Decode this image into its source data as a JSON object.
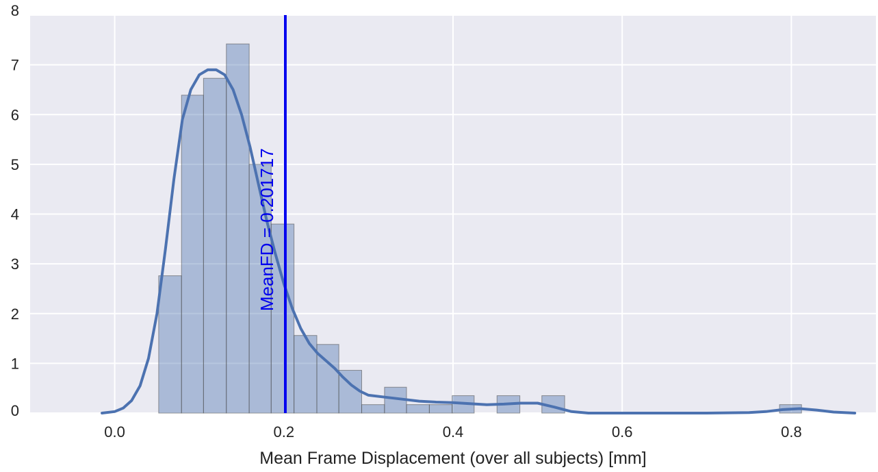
{
  "chart_data": {
    "type": "bar",
    "title": "",
    "xlabel": "Mean Frame Displacement (over all subjects) [mm]",
    "ylabel": "",
    "xlim": [
      -0.1,
      0.9
    ],
    "ylim": [
      0,
      8
    ],
    "grid": true,
    "xticks": [
      0.0,
      0.2,
      0.4,
      0.6,
      0.8
    ],
    "xtick_labels": [
      "0.0",
      "0.2",
      "0.4",
      "0.6",
      "0.8"
    ],
    "yticks": [
      0,
      1,
      2,
      3,
      4,
      5,
      6,
      7,
      8
    ],
    "ytick_labels": [
      "0",
      "1",
      "2",
      "3",
      "4",
      "5",
      "6",
      "7",
      "8"
    ],
    "histogram": {
      "bin_width": 0.0267,
      "bins": [
        {
          "x0": 0.052,
          "x1": 0.079,
          "value": 2.76
        },
        {
          "x0": 0.079,
          "x1": 0.105,
          "value": 6.39
        },
        {
          "x0": 0.105,
          "x1": 0.132,
          "value": 6.73
        },
        {
          "x0": 0.132,
          "x1": 0.159,
          "value": 7.42
        },
        {
          "x0": 0.159,
          "x1": 0.185,
          "value": 5.0
        },
        {
          "x0": 0.185,
          "x1": 0.212,
          "value": 3.8
        },
        {
          "x0": 0.212,
          "x1": 0.239,
          "value": 1.56
        },
        {
          "x0": 0.239,
          "x1": 0.265,
          "value": 1.38
        },
        {
          "x0": 0.265,
          "x1": 0.292,
          "value": 0.86
        },
        {
          "x0": 0.292,
          "x1": 0.319,
          "value": 0.17
        },
        {
          "x0": 0.319,
          "x1": 0.345,
          "value": 0.52
        },
        {
          "x0": 0.345,
          "x1": 0.372,
          "value": 0.17
        },
        {
          "x0": 0.372,
          "x1": 0.399,
          "value": 0.17
        },
        {
          "x0": 0.399,
          "x1": 0.425,
          "value": 0.35
        },
        {
          "x0": 0.425,
          "x1": 0.452,
          "value": 0.0
        },
        {
          "x0": 0.452,
          "x1": 0.479,
          "value": 0.35
        },
        {
          "x0": 0.479,
          "x1": 0.505,
          "value": 0.0
        },
        {
          "x0": 0.505,
          "x1": 0.532,
          "value": 0.35
        },
        {
          "x0": 0.786,
          "x1": 0.812,
          "value": 0.17
        }
      ]
    },
    "kde": {
      "x": [
        -0.015,
        0.0,
        0.01,
        0.02,
        0.03,
        0.04,
        0.05,
        0.06,
        0.07,
        0.08,
        0.09,
        0.1,
        0.11,
        0.12,
        0.13,
        0.14,
        0.15,
        0.16,
        0.17,
        0.18,
        0.19,
        0.2,
        0.21,
        0.22,
        0.23,
        0.24,
        0.25,
        0.26,
        0.27,
        0.28,
        0.29,
        0.3,
        0.32,
        0.34,
        0.36,
        0.38,
        0.4,
        0.42,
        0.44,
        0.46,
        0.48,
        0.5,
        0.52,
        0.54,
        0.56,
        0.6,
        0.65,
        0.7,
        0.75,
        0.77,
        0.79,
        0.81,
        0.83,
        0.85,
        0.875
      ],
      "y": [
        0.0,
        0.03,
        0.1,
        0.25,
        0.55,
        1.1,
        2.0,
        3.3,
        4.7,
        5.9,
        6.5,
        6.8,
        6.9,
        6.9,
        6.8,
        6.5,
        6.0,
        5.35,
        4.6,
        3.85,
        3.2,
        2.6,
        2.1,
        1.7,
        1.4,
        1.2,
        1.05,
        0.9,
        0.72,
        0.56,
        0.44,
        0.36,
        0.32,
        0.28,
        0.24,
        0.22,
        0.21,
        0.19,
        0.17,
        0.18,
        0.2,
        0.2,
        0.12,
        0.03,
        0.0,
        0.0,
        0.0,
        0.0,
        0.01,
        0.03,
        0.07,
        0.09,
        0.06,
        0.02,
        0.0
      ]
    },
    "reference_line": {
      "x": 0.201717,
      "label": "MeanFD = 0.201717",
      "color": "#0000ee"
    },
    "colors": {
      "background": "#eaeaf2",
      "grid": "#ffffff",
      "bar_fill": "#4c72b0",
      "bar_edge": "#555555",
      "kde_line": "#4c72b0"
    }
  }
}
